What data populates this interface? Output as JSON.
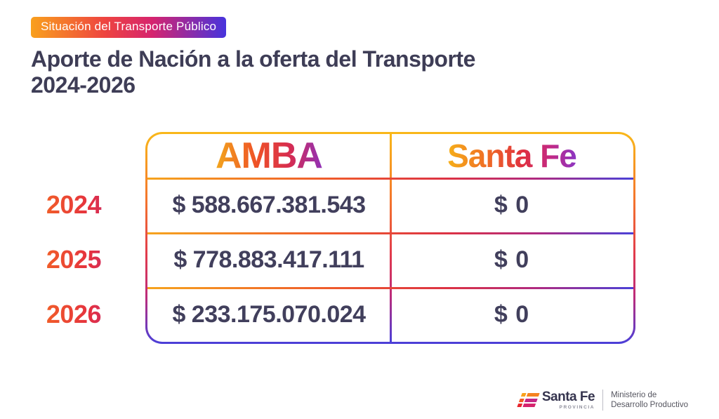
{
  "slide": {
    "badge": "Situación del Transporte Público",
    "title_line1": "Aporte de Nación a la oferta del Transporte",
    "title_line2": "2024-2026"
  },
  "table": {
    "col_headers": {
      "amba": "AMBA",
      "santa_fe": "Santa Fe"
    },
    "rows": [
      {
        "year": "2024",
        "amba": "$ 588.667.381.543",
        "santa_fe": "$ 0"
      },
      {
        "year": "2025",
        "amba": "$ 778.883.417.111",
        "santa_fe": "$ 0"
      },
      {
        "year": "2026",
        "amba": "$ 233.175.070.024",
        "santa_fe": "$ 0"
      }
    ]
  },
  "chart_data": {
    "type": "table",
    "title": "Aporte de Nación a la oferta del Transporte 2024-2026",
    "categories": [
      "2024",
      "2025",
      "2026"
    ],
    "series": [
      {
        "name": "AMBA",
        "values": [
          588667381543,
          778883417111,
          233175070024
        ],
        "labels": [
          "$ 588.667.381.543",
          "$ 778.883.417.111",
          "$ 233.175.070.024"
        ]
      },
      {
        "name": "Santa Fe",
        "values": [
          0,
          0,
          0
        ],
        "labels": [
          "$ 0",
          "$ 0",
          "$ 0"
        ]
      }
    ]
  },
  "footer": {
    "brand": "Santa Fe",
    "brand_sub": "PROVINCIA",
    "ministry_line1": "Ministerio de",
    "ministry_line2": "Desarrollo Productivo"
  },
  "colors": {
    "title_text": "#3E3D56",
    "value_text": "#413F5C",
    "badge_gradient": [
      "#F9A01D",
      "#EE4440",
      "#D6246E",
      "#4733DD"
    ],
    "border_gradient": [
      "#F9B81A",
      "#F4752C",
      "#E13A4C",
      "#BC2B7B",
      "#4A3FD9"
    ]
  }
}
